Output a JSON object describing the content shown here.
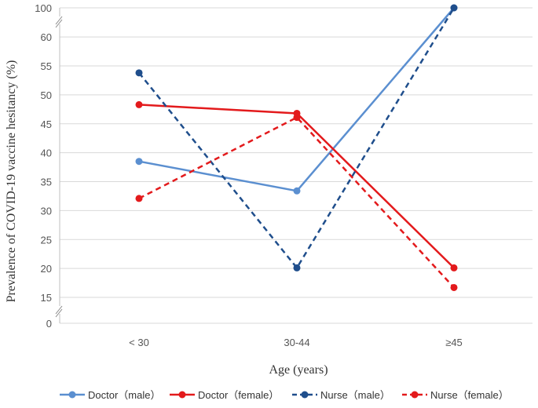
{
  "chart_data": {
    "type": "line",
    "categories": [
      "< 30",
      "30-44",
      "≥45"
    ],
    "xlabel": "Age (years)",
    "ylabel": "Prevalence of COVID-19 vaccine hesitancy (%)",
    "y_ticks": [
      "0",
      "15",
      "20",
      "25",
      "30",
      "35",
      "40",
      "45",
      "50",
      "55",
      "60",
      "100"
    ],
    "axis_break": "between 0 and 15, and between 60 and 100",
    "grid": true,
    "legend_position": "bottom",
    "series": [
      {
        "name": "Doctor（male）",
        "values": [
          38.5,
          33.4,
          100
        ],
        "color": "#5b8fd0",
        "dash": "solid"
      },
      {
        "name": "Doctor（female）",
        "values": [
          48.3,
          46.8,
          20.1
        ],
        "color": "#e31a1c",
        "dash": "solid"
      },
      {
        "name": "Nurse（male）",
        "values": [
          53.8,
          20.1,
          100
        ],
        "color": "#1f4e8c",
        "dash": "dashed"
      },
      {
        "name": "Nurse（female）",
        "values": [
          32.1,
          46.1,
          16.7
        ],
        "color": "#e31a1c",
        "dash": "dashed"
      }
    ]
  }
}
